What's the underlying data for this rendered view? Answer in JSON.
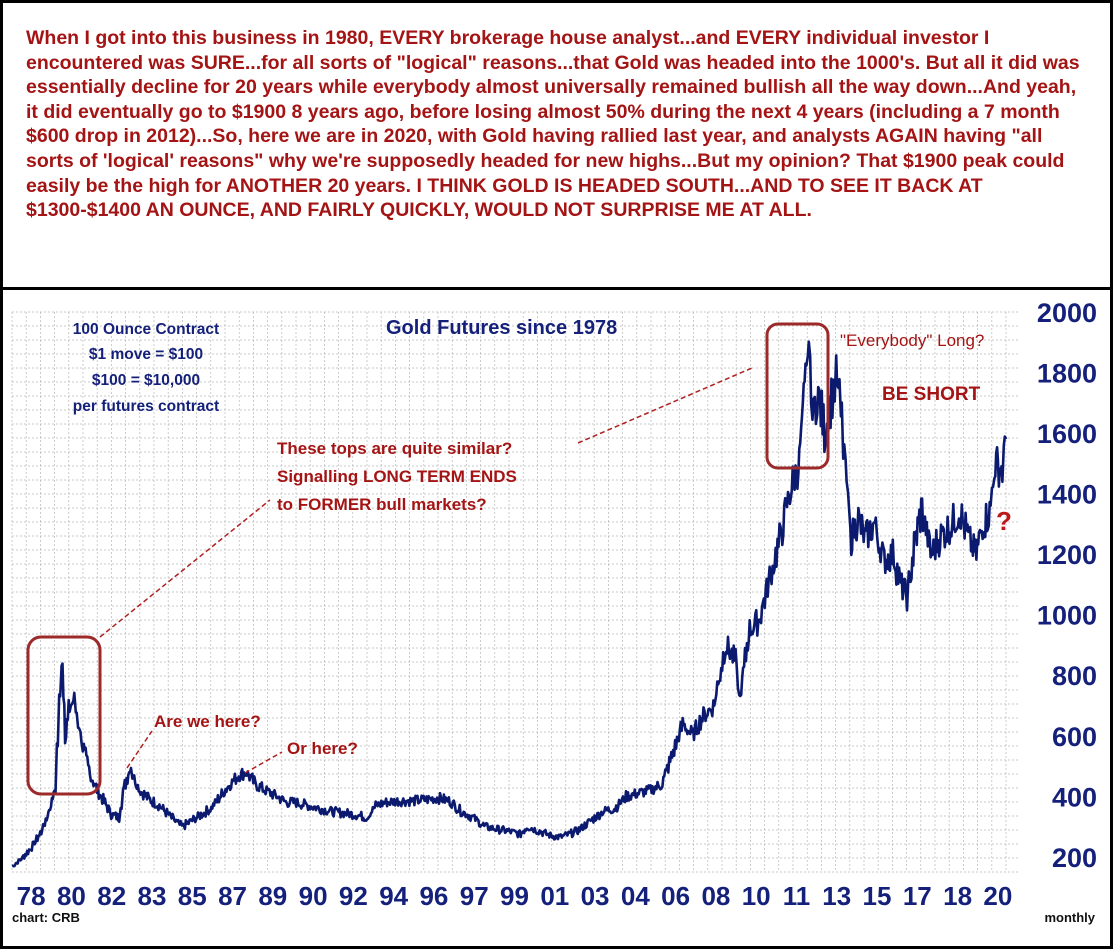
{
  "commentary": "When I got into this business in 1980, EVERY brokerage house analyst...and EVERY individual investor I encountered was SURE...for all sorts of \"logical\" reasons...that Gold was headed into the 1000's. But all it did was essentially decline for 20 years while everybody almost universally remained bullish all the way down...And yeah, it did eventually go to $1900 8 years ago, before losing almost 50% during the next 4 years (including a 7 month $600 drop in 2012)...So, here we are in 2020, with Gold having rallied last year, and analysts AGAIN having \"all sorts of 'logical' reasons\" why we're supposedly headed for new highs...But my opinion? That $1900 peak could easily be the high for ANOTHER 20 years. I THINK GOLD IS HEADED SOUTH...AND TO SEE IT BACK AT $1300-$1400 AN OUNCE, AND FAIRLY QUICKLY, WOULD NOT SURPRISE ME AT ALL.",
  "colors": {
    "price_line": "#0b1a6e",
    "annotation_red": "#a41414",
    "axis_text": "#14207a",
    "box_red": "#9c2a2a",
    "grid": "#b8b8b8"
  },
  "chart_data": {
    "type": "line",
    "title": "Gold Futures since 1978",
    "frequency": "monthly",
    "source": "chart: CRB",
    "contract_info": [
      "100 Ounce Contract",
      "$1 move = $100",
      "$100 = $10,000",
      "per futures contract"
    ],
    "xlim": [
      1978,
      2020.6
    ],
    "ylim": [
      150,
      2000
    ],
    "y_ticks": [
      200,
      400,
      600,
      800,
      1000,
      1200,
      1400,
      1600,
      1800,
      2000
    ],
    "x_tick_labels": [
      "78",
      "80",
      "82",
      "83",
      "85",
      "87",
      "89",
      "90",
      "92",
      "94",
      "96",
      "97",
      "99",
      "01",
      "03",
      "04",
      "06",
      "08",
      "10",
      "11",
      "13",
      "15",
      "17",
      "18",
      "20"
    ],
    "grid": true,
    "series": [
      {
        "x": [
          1978.0,
          1978.4,
          1978.8,
          1979.2,
          1979.5,
          1979.8,
          1980.0,
          1980.1,
          1980.25,
          1980.4,
          1980.6,
          1980.8,
          1981.0,
          1981.3,
          1981.6,
          1981.9,
          1982.2,
          1982.5,
          1982.7,
          1983.0,
          1983.1,
          1983.4,
          1983.8,
          1984.2,
          1984.6,
          1985.0,
          1985.2,
          1985.6,
          1986.0,
          1986.4,
          1986.8,
          1987.2,
          1987.6,
          1987.9,
          1988.3,
          1988.7,
          1989.2,
          1989.6,
          1990.0,
          1990.5,
          1991.0,
          1991.5,
          1992.0,
          1992.5,
          1993.0,
          1993.4,
          1993.8,
          1994.4,
          1995.0,
          1995.6,
          1996.0,
          1996.5,
          1997.0,
          1997.5,
          1998.0,
          1998.6,
          1999.0,
          1999.5,
          1999.8,
          2000.3,
          2000.8,
          2001.2,
          2001.6,
          2002.0,
          2002.5,
          2003.0,
          2003.5,
          2004.0,
          2004.5,
          2005.0,
          2005.5,
          2006.0,
          2006.4,
          2006.8,
          2007.2,
          2007.7,
          2008.2,
          2008.6,
          2008.8,
          2009.2,
          2009.6,
          2010.0,
          2010.5,
          2010.9,
          2011.3,
          2011.6,
          2011.7,
          2011.9,
          2012.1,
          2012.4,
          2012.7,
          2012.9,
          2013.1,
          2013.3,
          2013.5,
          2013.8,
          2014.1,
          2014.5,
          2014.9,
          2015.3,
          2015.6,
          2015.9,
          2016.2,
          2016.5,
          2016.9,
          2017.3,
          2017.7,
          2018.1,
          2018.5,
          2018.8,
          2019.1,
          2019.4,
          2019.6,
          2019.9,
          2020.1
        ],
        "values": [
          170,
          195,
          230,
          280,
          340,
          420,
          720,
          860,
          600,
          690,
          720,
          640,
          560,
          470,
          420,
          380,
          340,
          330,
          420,
          500,
          470,
          420,
          390,
          370,
          340,
          310,
          300,
          320,
          340,
          360,
          400,
          440,
          470,
          480,
          440,
          420,
          400,
          380,
          380,
          370,
          360,
          350,
          345,
          340,
          330,
          370,
          380,
          385,
          385,
          390,
          395,
          385,
          350,
          330,
          300,
          290,
          285,
          275,
          300,
          285,
          270,
          265,
          275,
          290,
          320,
          350,
          360,
          400,
          410,
          420,
          440,
          550,
          640,
          600,
          660,
          700,
          900,
          850,
          720,
          950,
          980,
          1100,
          1250,
          1400,
          1500,
          1780,
          1900,
          1650,
          1740,
          1600,
          1720,
          1780,
          1650,
          1450,
          1250,
          1320,
          1250,
          1300,
          1180,
          1200,
          1100,
          1060,
          1230,
          1350,
          1200,
          1260,
          1290,
          1340,
          1250,
          1200,
          1300,
          1340,
          1500,
          1480,
          1580
        ]
      }
    ],
    "annotations": [
      "\"Everybody\" Long?",
      "BE SHORT",
      "These tops are quite similar?",
      "Signalling LONG TERM ENDS",
      "to FORMER bull markets?",
      "Are we here?",
      "Or here?",
      "?"
    ]
  }
}
